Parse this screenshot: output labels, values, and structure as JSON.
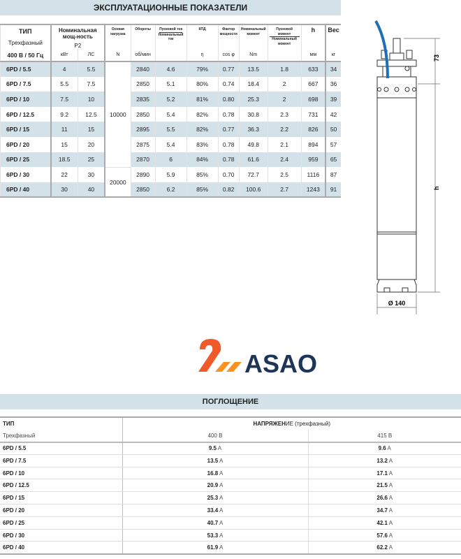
{
  "performance": {
    "title": "ЭКСПЛУАТАЦИОННЫЕ ПОКАЗАТЕЛИ",
    "headers": {
      "type": "ТИП",
      "type_sub": "Трехфазный",
      "type_unit": "400 В / 50 Гц",
      "power": "Номинальная мощ-ность",
      "power_sub": "P2",
      "kw": "кВт",
      "hp": "ЛС",
      "axial": "Осевая нагрузка",
      "axial_unit": "N",
      "rpm": "Обороты",
      "rpm_unit": "об/мин",
      "start_current_top": "Пусковой ток",
      "start_current_bottom": "Номинальный ток",
      "eff": "КПД",
      "eff_unit": "η",
      "pf": "Фактор мощности",
      "pf_unit": "cos φ",
      "torque": "Номинальный момент",
      "torque_unit": "Nm",
      "start_torque_top": "Пусковой момент",
      "start_torque_bottom": "Номинальный момент",
      "h": "h",
      "h_unit": "мм",
      "weight": "Вес",
      "weight_unit": "кг"
    },
    "axial_groups": [
      "10000",
      "20000"
    ],
    "rows": [
      [
        "6PD / 5.5",
        "4",
        "5.5",
        "2840",
        "4.6",
        "79%",
        "0.77",
        "13.5",
        "1.8",
        "633",
        "34"
      ],
      [
        "6PD / 7.5",
        "5.5",
        "7.5",
        "2850",
        "5.1",
        "80%",
        "0.74",
        "18.4",
        "2",
        "667",
        "36"
      ],
      [
        "6PD / 10",
        "7.5",
        "10",
        "2835",
        "5.2",
        "81%",
        "0.80",
        "25.3",
        "2",
        "698",
        "39"
      ],
      [
        "6PD / 12.5",
        "9.2",
        "12.5",
        "2850",
        "5.4",
        "82%",
        "0.78",
        "30.8",
        "2.3",
        "731",
        "42"
      ],
      [
        "6PD / 15",
        "11",
        "15",
        "2895",
        "5.5",
        "82%",
        "0.77",
        "36.3",
        "2.2",
        "826",
        "50"
      ],
      [
        "6PD / 20",
        "15",
        "20",
        "2875",
        "5.4",
        "83%",
        "0.78",
        "49.8",
        "2.1",
        "894",
        "57"
      ],
      [
        "6PD / 25",
        "18.5",
        "25",
        "2870",
        "6",
        "84%",
        "0.78",
        "61.6",
        "2.4",
        "959",
        "65"
      ],
      [
        "6PD / 30",
        "22",
        "30",
        "2890",
        "5.9",
        "85%",
        "0.70",
        "72.7",
        "2.5",
        "1116",
        "87"
      ],
      [
        "6PD / 40",
        "30",
        "40",
        "2850",
        "6.2",
        "85%",
        "0.82",
        "100.6",
        "2.7",
        "1243",
        "91"
      ]
    ]
  },
  "drawing": {
    "top_dim": "73",
    "height_dim": "h",
    "diameter": "Ø 140",
    "cable_color": "#1f6fb5"
  },
  "absorption": {
    "title": "ПОГЛОЩЕНИЕ",
    "type": "ТИП",
    "type_sub": "Трехфазный",
    "voltage_bold": "НАПРЯЖЕН",
    "voltage_rest": "ИЕ (трехфазный)",
    "v1": "400 В",
    "v2": "415 В",
    "unit": "A",
    "rows": [
      [
        "6PD / 5.5",
        "9.5",
        "9.6"
      ],
      [
        "6PD / 7.5",
        "13.5",
        "13.2"
      ],
      [
        "6PD / 10",
        "16.8",
        "17.1"
      ],
      [
        "6PD / 12.5",
        "20.9",
        "21.5"
      ],
      [
        "6PD / 15",
        "25.3",
        "26.6"
      ],
      [
        "6PD / 20",
        "33.4",
        "34.7"
      ],
      [
        "6PD / 25",
        "40.7",
        "42.1"
      ],
      [
        "6PD / 30",
        "53.3",
        "57.6"
      ],
      [
        "6PD / 40",
        "61.9",
        "62.2"
      ]
    ]
  },
  "logo": {
    "text": "ASAO",
    "orange": "#f05a28",
    "navy": "#1d3557"
  }
}
